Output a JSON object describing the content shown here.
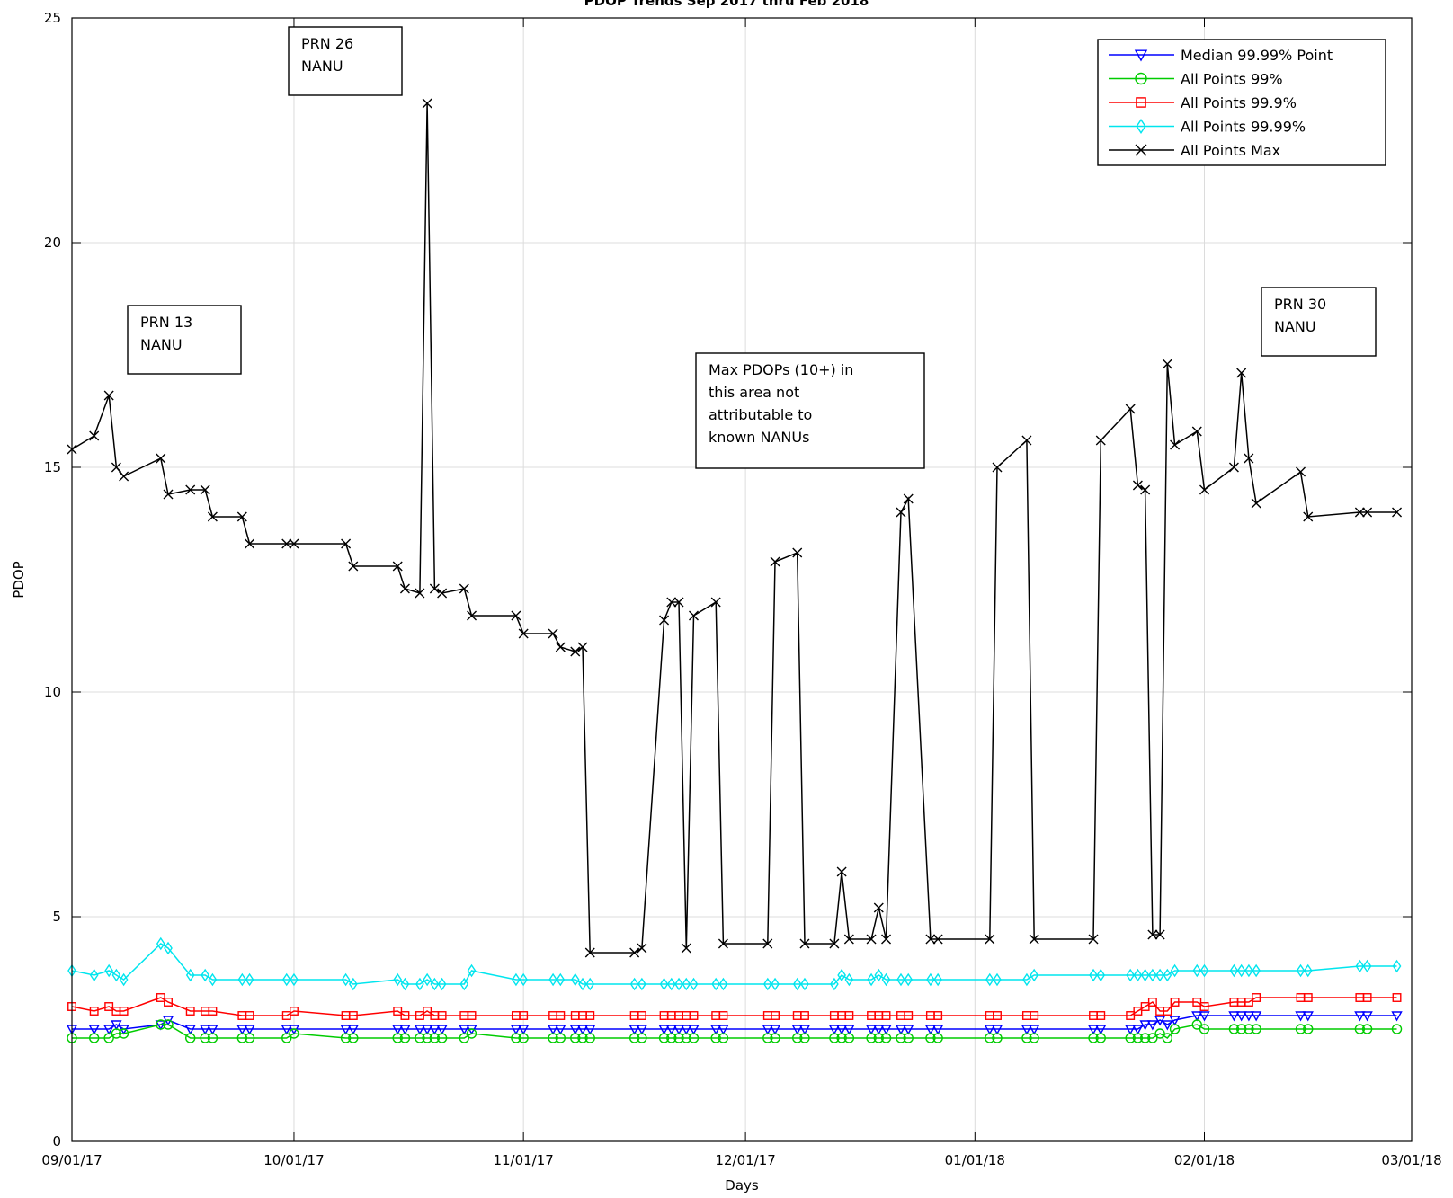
{
  "chart_data": {
    "type": "line",
    "title": "PDOP Trends Sep 2017 thru Feb 2018",
    "xlabel": "Days",
    "ylabel": "PDOP",
    "x_ticks": [
      "09/01/17",
      "10/01/17",
      "11/01/17",
      "12/01/17",
      "01/01/18",
      "02/01/18",
      "03/01/18"
    ],
    "y_ticks": [
      "0",
      "5",
      "10",
      "15",
      "20",
      "25"
    ],
    "xlim": [
      "2017-09-01",
      "2018-03-01"
    ],
    "ylim": [
      0,
      25
    ],
    "grid": true,
    "legend_position": "top-right",
    "x": [
      "2017-09-01",
      "2017-09-04",
      "2017-09-06",
      "2017-09-07",
      "2017-09-08",
      "2017-09-13",
      "2017-09-14",
      "2017-09-17",
      "2017-09-19",
      "2017-09-20",
      "2017-09-24",
      "2017-09-25",
      "2017-09-30",
      "2017-10-01",
      "2017-10-08",
      "2017-10-09",
      "2017-10-15",
      "2017-10-16",
      "2017-10-18",
      "2017-10-19",
      "2017-10-20",
      "2017-10-21",
      "2017-10-24",
      "2017-10-25",
      "2017-10-31",
      "2017-11-01",
      "2017-11-05",
      "2017-11-06",
      "2017-11-08",
      "2017-11-09",
      "2017-11-10",
      "2017-11-16",
      "2017-11-17",
      "2017-11-20",
      "2017-11-21",
      "2017-11-22",
      "2017-11-23",
      "2017-11-24",
      "2017-11-27",
      "2017-11-28",
      "2017-12-04",
      "2017-12-05",
      "2017-12-08",
      "2017-12-09",
      "2017-12-13",
      "2017-12-14",
      "2017-12-15",
      "2017-12-18",
      "2017-12-19",
      "2017-12-20",
      "2017-12-22",
      "2017-12-23",
      "2017-12-26",
      "2017-12-27",
      "2018-01-03",
      "2018-01-04",
      "2018-01-08",
      "2018-01-09",
      "2018-01-17",
      "2018-01-18",
      "2018-01-22",
      "2018-01-23",
      "2018-01-24",
      "2018-01-25",
      "2018-01-26",
      "2018-01-27",
      "2018-01-28",
      "2018-01-31",
      "2018-02-01",
      "2018-02-05",
      "2018-02-06",
      "2018-02-07",
      "2018-02-08",
      "2018-02-14",
      "2018-02-15",
      "2018-02-22",
      "2018-02-23",
      "2018-02-27"
    ],
    "series": [
      {
        "name": "Median 99.99% Point",
        "color": "#0000ff",
        "marker": "triangle-down",
        "values": [
          2.5,
          2.5,
          2.5,
          2.6,
          2.5,
          2.6,
          2.7,
          2.5,
          2.5,
          2.5,
          2.5,
          2.5,
          2.5,
          2.5,
          2.5,
          2.5,
          2.5,
          2.5,
          2.5,
          2.5,
          2.5,
          2.5,
          2.5,
          2.5,
          2.5,
          2.5,
          2.5,
          2.5,
          2.5,
          2.5,
          2.5,
          2.5,
          2.5,
          2.5,
          2.5,
          2.5,
          2.5,
          2.5,
          2.5,
          2.5,
          2.5,
          2.5,
          2.5,
          2.5,
          2.5,
          2.5,
          2.5,
          2.5,
          2.5,
          2.5,
          2.5,
          2.5,
          2.5,
          2.5,
          2.5,
          2.5,
          2.5,
          2.5,
          2.5,
          2.5,
          2.5,
          2.5,
          2.6,
          2.6,
          2.7,
          2.6,
          2.7,
          2.8,
          2.8,
          2.8,
          2.8,
          2.8,
          2.8,
          2.8,
          2.8,
          2.8,
          2.8,
          2.8
        ]
      },
      {
        "name": "All Points 99%",
        "color": "#00cc00",
        "marker": "circle",
        "values": [
          2.3,
          2.3,
          2.3,
          2.4,
          2.4,
          2.6,
          2.6,
          2.3,
          2.3,
          2.3,
          2.3,
          2.3,
          2.3,
          2.4,
          2.3,
          2.3,
          2.3,
          2.3,
          2.3,
          2.3,
          2.3,
          2.3,
          2.3,
          2.4,
          2.3,
          2.3,
          2.3,
          2.3,
          2.3,
          2.3,
          2.3,
          2.3,
          2.3,
          2.3,
          2.3,
          2.3,
          2.3,
          2.3,
          2.3,
          2.3,
          2.3,
          2.3,
          2.3,
          2.3,
          2.3,
          2.3,
          2.3,
          2.3,
          2.3,
          2.3,
          2.3,
          2.3,
          2.3,
          2.3,
          2.3,
          2.3,
          2.3,
          2.3,
          2.3,
          2.3,
          2.3,
          2.3,
          2.3,
          2.3,
          2.4,
          2.3,
          2.5,
          2.6,
          2.5,
          2.5,
          2.5,
          2.5,
          2.5,
          2.5,
          2.5,
          2.5,
          2.5,
          2.5
        ]
      },
      {
        "name": "All Points 99.9%",
        "color": "#ff0000",
        "marker": "square",
        "values": [
          3.0,
          2.9,
          3.0,
          2.9,
          2.9,
          3.2,
          3.1,
          2.9,
          2.9,
          2.9,
          2.8,
          2.8,
          2.8,
          2.9,
          2.8,
          2.8,
          2.9,
          2.8,
          2.8,
          2.9,
          2.8,
          2.8,
          2.8,
          2.8,
          2.8,
          2.8,
          2.8,
          2.8,
          2.8,
          2.8,
          2.8,
          2.8,
          2.8,
          2.8,
          2.8,
          2.8,
          2.8,
          2.8,
          2.8,
          2.8,
          2.8,
          2.8,
          2.8,
          2.8,
          2.8,
          2.8,
          2.8,
          2.8,
          2.8,
          2.8,
          2.8,
          2.8,
          2.8,
          2.8,
          2.8,
          2.8,
          2.8,
          2.8,
          2.8,
          2.8,
          2.8,
          2.9,
          3.0,
          3.1,
          2.9,
          2.9,
          3.1,
          3.1,
          3.0,
          3.1,
          3.1,
          3.1,
          3.2,
          3.2,
          3.2,
          3.2,
          3.2,
          3.2
        ]
      },
      {
        "name": "All Points 99.99%",
        "color": "#00e5ee",
        "marker": "diamond",
        "values": [
          3.8,
          3.7,
          3.8,
          3.7,
          3.6,
          4.4,
          4.3,
          3.7,
          3.7,
          3.6,
          3.6,
          3.6,
          3.6,
          3.6,
          3.6,
          3.5,
          3.6,
          3.5,
          3.5,
          3.6,
          3.5,
          3.5,
          3.5,
          3.8,
          3.6,
          3.6,
          3.6,
          3.6,
          3.6,
          3.5,
          3.5,
          3.5,
          3.5,
          3.5,
          3.5,
          3.5,
          3.5,
          3.5,
          3.5,
          3.5,
          3.5,
          3.5,
          3.5,
          3.5,
          3.5,
          3.7,
          3.6,
          3.6,
          3.7,
          3.6,
          3.6,
          3.6,
          3.6,
          3.6,
          3.6,
          3.6,
          3.6,
          3.7,
          3.7,
          3.7,
          3.7,
          3.7,
          3.7,
          3.7,
          3.7,
          3.7,
          3.8,
          3.8,
          3.8,
          3.8,
          3.8,
          3.8,
          3.8,
          3.8,
          3.8,
          3.9,
          3.9,
          3.9
        ]
      },
      {
        "name": "All Points Max",
        "color": "#000000",
        "marker": "x",
        "values": [
          15.4,
          15.7,
          16.6,
          15.0,
          14.8,
          15.2,
          14.4,
          14.5,
          14.5,
          13.9,
          13.9,
          13.3,
          13.3,
          13.3,
          13.3,
          12.8,
          12.8,
          12.3,
          12.2,
          23.1,
          12.3,
          12.2,
          12.3,
          11.7,
          11.7,
          11.3,
          11.3,
          11.0,
          10.9,
          11.0,
          4.2,
          4.2,
          4.3,
          11.6,
          12.0,
          12.0,
          4.3,
          11.7,
          12.0,
          4.4,
          4.4,
          12.9,
          13.1,
          4.4,
          4.4,
          6.0,
          4.5,
          4.5,
          5.2,
          4.5,
          14.0,
          14.3,
          4.5,
          4.5,
          4.5,
          15.0,
          15.6,
          4.5,
          4.5,
          15.6,
          16.3,
          14.6,
          14.5,
          4.6,
          4.6,
          17.3,
          15.5,
          15.8,
          14.5,
          15.0,
          17.1,
          15.2,
          14.2,
          14.9,
          13.9,
          14.0,
          14.0,
          14.0
        ]
      }
    ]
  },
  "annotations": [
    {
      "id": "prn13",
      "lines": [
        "PRN 13",
        "NANU"
      ]
    },
    {
      "id": "prn26",
      "lines": [
        "PRN 26",
        "NANU"
      ]
    },
    {
      "id": "max-note",
      "lines": [
        "Max PDOPs (10+) in",
        "this area not",
        "attributable to",
        "known NANUs"
      ]
    },
    {
      "id": "prn30",
      "lines": [
        "PRN 30",
        "NANU"
      ]
    }
  ]
}
